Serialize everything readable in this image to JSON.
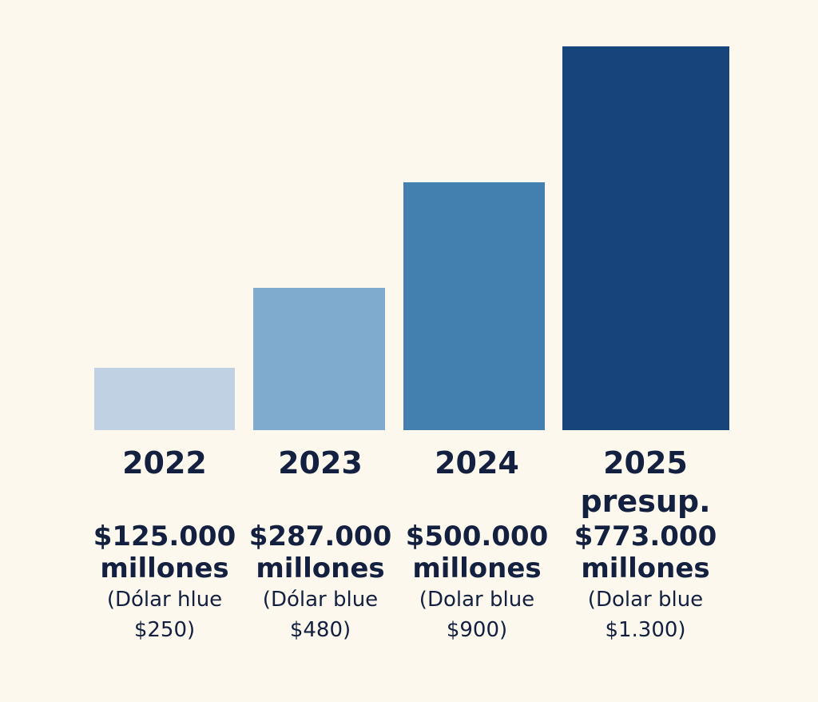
{
  "colors": {
    "background": "#fdf8ee",
    "text": "#13203f"
  },
  "chart_data": {
    "type": "bar",
    "title": "",
    "xlabel": "",
    "ylabel": "",
    "ylim": [
      0,
      773000
    ],
    "grid": false,
    "legend": "none",
    "categories": [
      {
        "year": "2022",
        "note": "",
        "value_label": "$125.000",
        "unit_label": "millones",
        "fx_label": "(Dólar hlue",
        "fx_value": "$250)",
        "color": "#bfd1e3"
      },
      {
        "year": "2023",
        "note": "",
        "value_label": "$287.000",
        "unit_label": "millones",
        "fx_label": "(Dólar blue",
        "fx_value": "$480)",
        "color": "#7fabcf"
      },
      {
        "year": "2024",
        "note": "",
        "value_label": "$500.000",
        "unit_label": "millones",
        "fx_label": "(Dolar blue",
        "fx_value": "$900)",
        "color": "#4380b0"
      },
      {
        "year": "2025",
        "note": "presup.",
        "value_label": "$773.000",
        "unit_label": "millones",
        "fx_label": "(Dolar blue",
        "fx_value": "$1.300)",
        "color": "#17447a"
      }
    ],
    "values": [
      125000,
      287000,
      500000,
      773000
    ]
  }
}
